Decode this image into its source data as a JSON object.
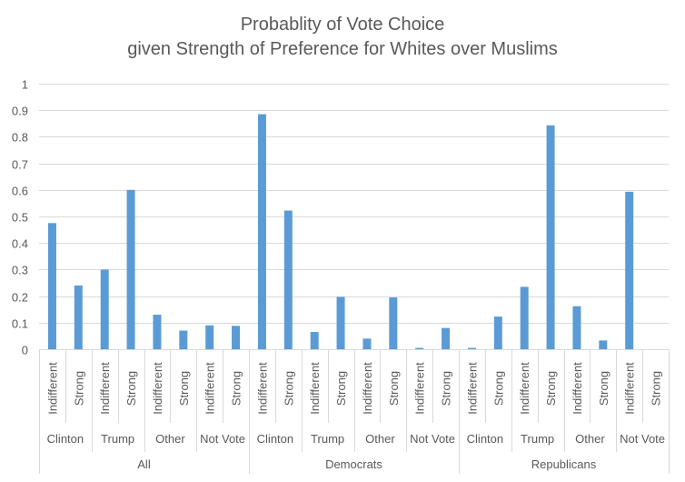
{
  "chart_data": {
    "type": "bar",
    "title_line1": "Probablity of Vote Choice",
    "title_line2": "given Strength of Preference for Whites over Muslims",
    "ylim": [
      0,
      1
    ],
    "yticks": [
      "0",
      "0.1",
      "0.2",
      "0.3",
      "0.4",
      "0.5",
      "0.6",
      "0.7",
      "0.8",
      "0.9",
      "1"
    ],
    "grid": true,
    "legend": "none",
    "bar_color": "#5b9bd5",
    "groups": [
      {
        "name": "All",
        "choices": [
          {
            "name": "Clinton",
            "levels": [
              {
                "label": "Indifferent",
                "value": 0.475
              },
              {
                "label": "Strong",
                "value": 0.24
              }
            ]
          },
          {
            "name": "Trump",
            "levels": [
              {
                "label": "Indifferent",
                "value": 0.3
              },
              {
                "label": "Strong",
                "value": 0.6
              }
            ]
          },
          {
            "name": "Other",
            "levels": [
              {
                "label": "Indifferent",
                "value": 0.13
              },
              {
                "label": "Strong",
                "value": 0.07
              }
            ]
          },
          {
            "name": "Not Vote",
            "levels": [
              {
                "label": "Indifferent",
                "value": 0.09
              },
              {
                "label": "Strong",
                "value": 0.088
              }
            ]
          }
        ]
      },
      {
        "name": "Democrats",
        "choices": [
          {
            "name": "Clinton",
            "levels": [
              {
                "label": "Indifferent",
                "value": 0.885
              },
              {
                "label": "Strong",
                "value": 0.522
              }
            ]
          },
          {
            "name": "Trump",
            "levels": [
              {
                "label": "Indifferent",
                "value": 0.065
              },
              {
                "label": "Strong",
                "value": 0.197
              }
            ]
          },
          {
            "name": "Other",
            "levels": [
              {
                "label": "Indifferent",
                "value": 0.04
              },
              {
                "label": "Strong",
                "value": 0.195
              }
            ]
          },
          {
            "name": "Not Vote",
            "levels": [
              {
                "label": "Indifferent",
                "value": 0.005
              },
              {
                "label": "Strong",
                "value": 0.08
              }
            ]
          }
        ]
      },
      {
        "name": "Republicans",
        "choices": [
          {
            "name": "Clinton",
            "levels": [
              {
                "label": "Indifferent",
                "value": 0.005
              },
              {
                "label": "Strong",
                "value": 0.123
              }
            ]
          },
          {
            "name": "Trump",
            "levels": [
              {
                "label": "Indifferent",
                "value": 0.235
              },
              {
                "label": "Strong",
                "value": 0.843
              }
            ]
          },
          {
            "name": "Other",
            "levels": [
              {
                "label": "Indifferent",
                "value": 0.162
              },
              {
                "label": "Strong",
                "value": 0.033
              }
            ]
          },
          {
            "name": "Not Vote",
            "levels": [
              {
                "label": "Indifferent",
                "value": 0.593
              },
              {
                "label": "Strong",
                "value": 0
              }
            ]
          }
        ]
      }
    ]
  }
}
